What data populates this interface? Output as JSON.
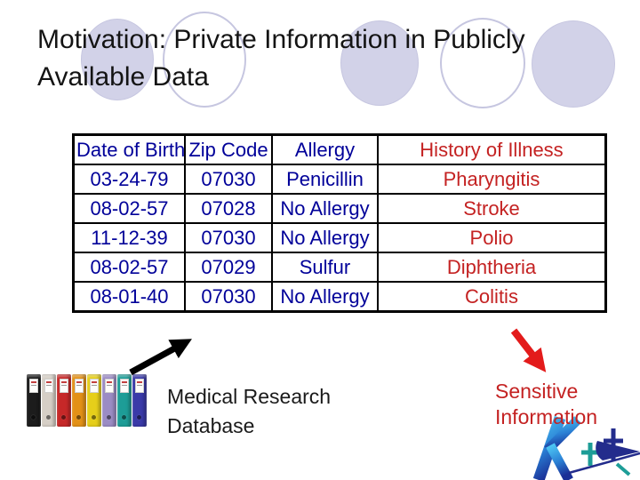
{
  "slide_title": "Motivation: Private Information in Publicly Available Data",
  "table": {
    "header": [
      "Date of Birth",
      "Zip Code",
      "Allergy",
      "History of Illness"
    ],
    "rows": [
      [
        "03-24-79",
        "07030",
        "Penicillin",
        "Pharyngitis"
      ],
      [
        "08-02-57",
        "07028",
        "No Allergy",
        "Stroke"
      ],
      [
        "11-12-39",
        "07030",
        "No Allergy",
        "Polio"
      ],
      [
        "08-02-57",
        "07029",
        "Sulfur",
        "Diphtheria"
      ],
      [
        "08-01-40",
        "07030",
        "No Allergy",
        "Colitis"
      ]
    ],
    "quasi_identifier_text_color": "#000099",
    "sensitive_text_color": "#c42222"
  },
  "captions": {
    "database_label": "Medical Research Database",
    "sensitive_label": "Sensitive Information"
  },
  "decor": {
    "circle_fill": "#d2d2e8",
    "circle_stroke": "#c6c6e0",
    "black_arrow_color": "#000000",
    "red_arrow_color": "#e31b1b"
  },
  "binders": {
    "colors": [
      "#1c1c1c",
      "#d6cfc6",
      "#c62828",
      "#e39117",
      "#e6cf1a",
      "#9b8cc4",
      "#1d9d97",
      "#3a3aa8"
    ]
  },
  "logo": {
    "icon": "kdd-logo",
    "gradient_top": "#4ec9f5",
    "gradient_bottom": "#1a2f96",
    "accent_teal": "#1d9d97",
    "accent_navy": "#232c8c"
  }
}
